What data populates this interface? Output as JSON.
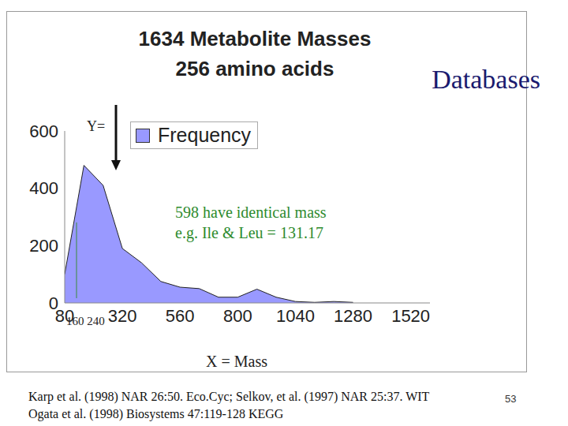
{
  "chart_data": {
    "type": "area",
    "title": "1634 Metabolite Masses",
    "subtitle": "256 amino acids",
    "heading": "Databases",
    "x": [
      80,
      160,
      240,
      320,
      400,
      480,
      560,
      640,
      720,
      800,
      880,
      960,
      1040,
      1120,
      1200,
      1280
    ],
    "series": [
      {
        "name": "Frequency",
        "color": "#9999ff",
        "values": [
          100,
          480,
          410,
          190,
          140,
          75,
          55,
          50,
          20,
          20,
          48,
          20,
          5,
          2,
          5,
          2
        ]
      }
    ],
    "xlabel": "X = Mass",
    "xlim": [
      80,
      1600
    ],
    "xticks": [
      80,
      320,
      560,
      800,
      1040,
      1280,
      1520
    ],
    "ylim": [
      0,
      600
    ],
    "yticks": [
      0,
      200,
      400,
      600
    ],
    "legend": "top",
    "grid": false,
    "annotations": [
      "Y=",
      "598 have identical mass",
      "e.g. Ile & Leu = 131.17",
      "160 240"
    ],
    "footer": [
      "Karp et al. (1998) NAR 26:50. Eco.Cyc; Selkov, et al. (1997) NAR 25:37. WIT",
      "Ogata et al. (1998) Biosystems 47:119-128 KEGG"
    ],
    "page": 53
  }
}
